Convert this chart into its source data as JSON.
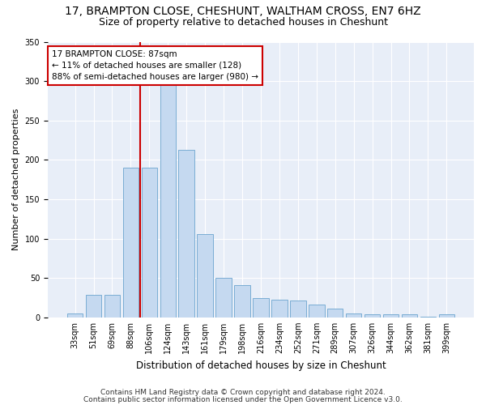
{
  "title1": "17, BRAMPTON CLOSE, CHESHUNT, WALTHAM CROSS, EN7 6HZ",
  "title2": "Size of property relative to detached houses in Cheshunt",
  "xlabel": "Distribution of detached houses by size in Cheshunt",
  "ylabel": "Number of detached properties",
  "categories": [
    "33sqm",
    "51sqm",
    "69sqm",
    "88sqm",
    "106sqm",
    "124sqm",
    "143sqm",
    "161sqm",
    "179sqm",
    "198sqm",
    "216sqm",
    "234sqm",
    "252sqm",
    "271sqm",
    "289sqm",
    "307sqm",
    "326sqm",
    "344sqm",
    "362sqm",
    "381sqm",
    "399sqm"
  ],
  "values": [
    5,
    29,
    29,
    190,
    190,
    295,
    213,
    106,
    50,
    41,
    24,
    22,
    21,
    16,
    11,
    5,
    4,
    4,
    4,
    1,
    4
  ],
  "bar_color": "#c5d9f0",
  "bar_edge_color": "#7aadd4",
  "bar_width": 0.85,
  "vline_x": 3.5,
  "vline_color": "#cc0000",
  "annotation_line1": "17 BRAMPTON CLOSE: 87sqm",
  "annotation_line2": "← 11% of detached houses are smaller (128)",
  "annotation_line3": "88% of semi-detached houses are larger (980) →",
  "annotation_box_color": "#ffffff",
  "annotation_box_edge": "#cc0000",
  "ylim": [
    0,
    350
  ],
  "yticks": [
    0,
    50,
    100,
    150,
    200,
    250,
    300,
    350
  ],
  "bg_color": "#e8eef8",
  "grid_color": "#ffffff",
  "footer1": "Contains HM Land Registry data © Crown copyright and database right 2024.",
  "footer2": "Contains public sector information licensed under the Open Government Licence v3.0.",
  "title1_fontsize": 10,
  "title2_fontsize": 9,
  "xlabel_fontsize": 8.5,
  "ylabel_fontsize": 8,
  "tick_fontsize": 7,
  "annotation_fontsize": 7.5,
  "footer_fontsize": 6.5
}
